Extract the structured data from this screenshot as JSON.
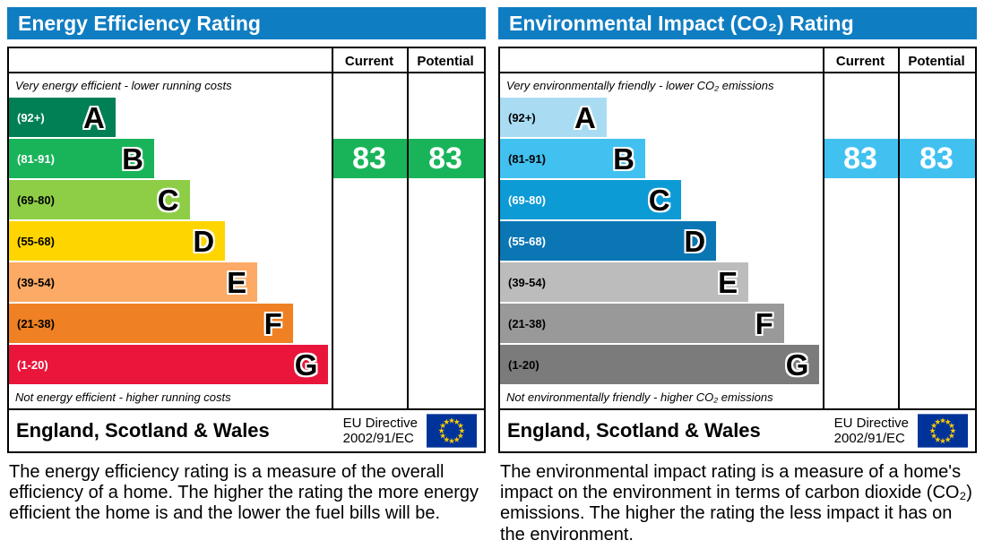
{
  "colors": {
    "header_bg": "#0f7dc2",
    "border": "#000000"
  },
  "panels": [
    {
      "title": "Energy Efficiency Rating",
      "head": {
        "current": "Current",
        "potential": "Potential"
      },
      "top_note": "Very energy efficient - lower running costs",
      "bottom_note": "Not energy efficient - higher running costs",
      "bands": [
        {
          "range": "(92+)",
          "letter": "A",
          "color": "#008054",
          "text_color": "#ffffff",
          "width_pct": 33
        },
        {
          "range": "(81-91)",
          "letter": "B",
          "color": "#19b459",
          "text_color": "#ffffff",
          "width_pct": 45
        },
        {
          "range": "(69-80)",
          "letter": "C",
          "color": "#8dce46",
          "text_color": "#000000",
          "width_pct": 56
        },
        {
          "range": "(55-68)",
          "letter": "D",
          "color": "#ffd500",
          "text_color": "#000000",
          "width_pct": 67
        },
        {
          "range": "(39-54)",
          "letter": "E",
          "color": "#fcaa65",
          "text_color": "#000000",
          "width_pct": 77
        },
        {
          "range": "(21-38)",
          "letter": "F",
          "color": "#ef8023",
          "text_color": "#000000",
          "width_pct": 88
        },
        {
          "range": "(1-20)",
          "letter": "G",
          "color": "#e9153b",
          "text_color": "#ffffff",
          "width_pct": 99
        }
      ],
      "current": {
        "value": "83",
        "band_index": 1,
        "color": "#19b459"
      },
      "potential": {
        "value": "83",
        "band_index": 1,
        "color": "#19b459"
      },
      "footer": {
        "region": "England, Scotland & Wales",
        "directive1": "EU Directive",
        "directive2": "2002/91/EC"
      },
      "description": "The energy efficiency rating is a measure of the overall efficiency of a home. The higher the rating the more energy efficient the home is and the lower the fuel bills will be."
    },
    {
      "title": "Environmental Impact (CO₂) Rating",
      "head": {
        "current": "Current",
        "potential": "Potential"
      },
      "top_note": "Very environmentally friendly - lower CO₂ emissions",
      "bottom_note": "Not environmentally friendly - higher CO₂ emissions",
      "bands": [
        {
          "range": "(92+)",
          "letter": "A",
          "color": "#a9dcf3",
          "text_color": "#000000",
          "width_pct": 33
        },
        {
          "range": "(81-91)",
          "letter": "B",
          "color": "#41c1f0",
          "text_color": "#000000",
          "width_pct": 45
        },
        {
          "range": "(69-80)",
          "letter": "C",
          "color": "#0d9bd6",
          "text_color": "#ffffff",
          "width_pct": 56
        },
        {
          "range": "(55-68)",
          "letter": "D",
          "color": "#0b76b4",
          "text_color": "#ffffff",
          "width_pct": 67
        },
        {
          "range": "(39-54)",
          "letter": "E",
          "color": "#bcbcbc",
          "text_color": "#000000",
          "width_pct": 77
        },
        {
          "range": "(21-38)",
          "letter": "F",
          "color": "#999999",
          "text_color": "#000000",
          "width_pct": 88
        },
        {
          "range": "(1-20)",
          "letter": "G",
          "color": "#7b7b7b",
          "text_color": "#000000",
          "width_pct": 99
        }
      ],
      "current": {
        "value": "83",
        "band_index": 1,
        "color": "#41c1f0"
      },
      "potential": {
        "value": "83",
        "band_index": 1,
        "color": "#41c1f0"
      },
      "footer": {
        "region": "England, Scotland & Wales",
        "directive1": "EU Directive",
        "directive2": "2002/91/EC"
      },
      "description": "The environmental impact rating is a measure of a home's impact on the environment in terms of carbon dioxide (CO₂) emissions. The higher the rating the less impact it has on the environment."
    }
  ],
  "chart_data": [
    {
      "type": "bar",
      "title": "Energy Efficiency Rating",
      "categories": [
        "A",
        "B",
        "C",
        "D",
        "E",
        "F",
        "G"
      ],
      "band_ranges": [
        "92+",
        "81-91",
        "69-80",
        "55-68",
        "39-54",
        "21-38",
        "1-20"
      ],
      "bar_lengths_pct": [
        33,
        45,
        56,
        67,
        77,
        88,
        99
      ],
      "series": [
        {
          "name": "Current",
          "value": 83,
          "band": "B"
        },
        {
          "name": "Potential",
          "value": 83,
          "band": "B"
        }
      ],
      "top_label": "Very energy efficient - lower running costs",
      "bottom_label": "Not energy efficient - higher running costs",
      "footer": "England, Scotland & Wales — EU Directive 2002/91/EC"
    },
    {
      "type": "bar",
      "title": "Environmental Impact (CO₂) Rating",
      "categories": [
        "A",
        "B",
        "C",
        "D",
        "E",
        "F",
        "G"
      ],
      "band_ranges": [
        "92+",
        "81-91",
        "69-80",
        "55-68",
        "39-54",
        "21-38",
        "1-20"
      ],
      "bar_lengths_pct": [
        33,
        45,
        56,
        67,
        77,
        88,
        99
      ],
      "series": [
        {
          "name": "Current",
          "value": 83,
          "band": "B"
        },
        {
          "name": "Potential",
          "value": 83,
          "band": "B"
        }
      ],
      "top_label": "Very environmentally friendly - lower CO₂ emissions",
      "bottom_label": "Not environmentally friendly - higher CO₂ emissions",
      "footer": "England, Scotland & Wales — EU Directive 2002/91/EC"
    }
  ]
}
